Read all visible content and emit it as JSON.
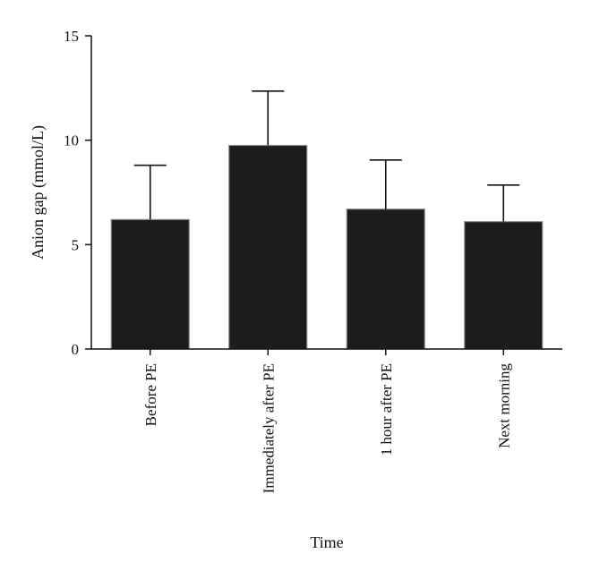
{
  "chart_data": {
    "type": "bar",
    "title": "",
    "xlabel": "Time",
    "ylabel": "Anion gap (mmol/L)",
    "categories": [
      "Before PE",
      "Immediately after PE",
      "1 hour after PE",
      "Next morning"
    ],
    "values": [
      6.2,
      9.75,
      6.7,
      6.1
    ],
    "error_upper": [
      8.8,
      12.35,
      9.05,
      7.85
    ],
    "ylim": [
      0,
      15
    ],
    "yticks": [
      0,
      5,
      10,
      15
    ],
    "grid": false,
    "bar_color": "#1c1c1c",
    "bar_edge_color": "#8a8a8a"
  }
}
